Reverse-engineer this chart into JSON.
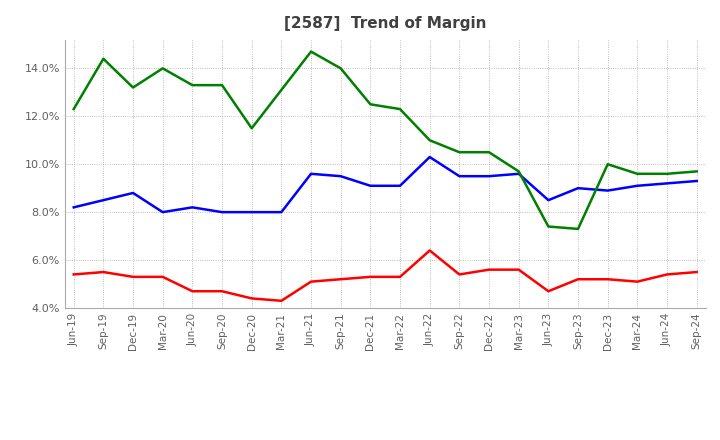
{
  "title": "[2587]  Trend of Margin",
  "x_labels": [
    "Jun-19",
    "Sep-19",
    "Dec-19",
    "Mar-20",
    "Jun-20",
    "Sep-20",
    "Dec-20",
    "Mar-21",
    "Jun-21",
    "Sep-21",
    "Dec-21",
    "Mar-22",
    "Jun-22",
    "Sep-22",
    "Dec-22",
    "Mar-23",
    "Jun-23",
    "Sep-23",
    "Dec-23",
    "Mar-24",
    "Jun-24",
    "Sep-24"
  ],
  "ordinary_income": [
    8.2,
    8.5,
    8.8,
    8.0,
    8.2,
    8.0,
    8.0,
    8.0,
    9.6,
    9.5,
    9.1,
    9.1,
    10.3,
    9.5,
    9.5,
    9.6,
    8.5,
    9.0,
    8.9,
    9.1,
    9.2,
    9.3
  ],
  "net_income": [
    5.4,
    5.5,
    5.3,
    5.3,
    4.7,
    4.7,
    4.4,
    4.3,
    5.1,
    5.2,
    5.3,
    5.3,
    6.4,
    5.4,
    5.6,
    5.6,
    4.7,
    5.2,
    5.2,
    5.1,
    5.4,
    5.5
  ],
  "operating_cashflow": [
    12.3,
    14.4,
    13.2,
    14.0,
    13.3,
    13.3,
    11.5,
    13.1,
    14.7,
    14.0,
    12.5,
    12.3,
    11.0,
    10.5,
    10.5,
    9.7,
    7.4,
    7.3,
    10.0,
    9.6,
    9.6,
    9.7
  ],
  "ylim": [
    4.0,
    15.2
  ],
  "yticks": [
    4.0,
    6.0,
    8.0,
    10.0,
    12.0,
    14.0
  ],
  "line_color_oi": "#0000FF",
  "line_color_ni": "#FF0000",
  "line_color_ocf": "#008000",
  "bg_color": "#FFFFFF",
  "grid_color": "#AAAAAA",
  "title_fontsize": 11,
  "title_color": "#404040",
  "tick_color": "#606060"
}
